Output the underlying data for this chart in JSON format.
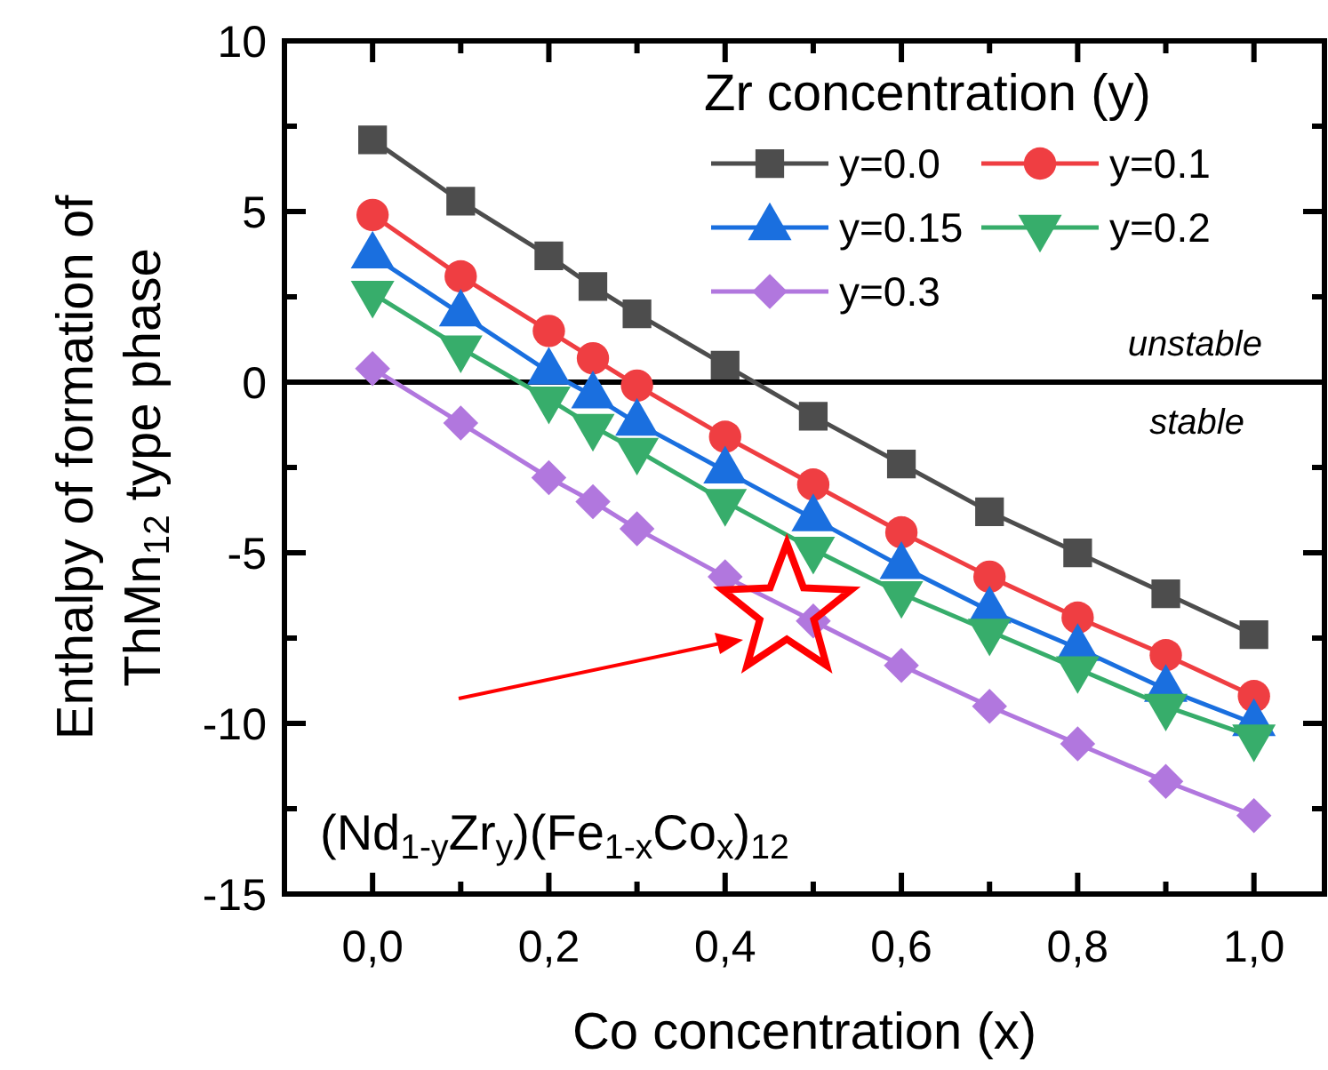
{
  "chart_data": {
    "type": "line",
    "xlabel": "Co concentration (x)",
    "ylabel": "Enthalpy of formation of\nThMn$_{12}$ type phase",
    "legend_title": "Zr concentration (y)",
    "legend": "top right",
    "grid": false,
    "line_style": "solid",
    "x": [
      0,
      0.1,
      0.2,
      0.25,
      0.3,
      0.4,
      0.5,
      0.6,
      0.7,
      0.8,
      0.9,
      1.0
    ],
    "xlim": [
      -0.1,
      1.08
    ],
    "ylim": [
      -15,
      10
    ],
    "xticks": [
      {
        "value": 0,
        "label": "0,0"
      },
      {
        "value": 0.1,
        "label": null
      },
      {
        "value": 0.2,
        "label": "0,2"
      },
      {
        "value": 0.3,
        "label": null
      },
      {
        "value": 0.4,
        "label": "0,4"
      },
      {
        "value": 0.5,
        "label": null
      },
      {
        "value": 0.6,
        "label": "0,6"
      },
      {
        "value": 0.7,
        "label": null
      },
      {
        "value": 0.8,
        "label": "0,8"
      },
      {
        "value": 0.9,
        "label": null
      },
      {
        "value": 1.0,
        "label": "1,0"
      }
    ],
    "yticks": [
      -15,
      {
        "value": -12.5,
        "label": null
      },
      -10,
      {
        "value": -7.5,
        "label": null
      },
      -5,
      {
        "value": -2.5,
        "label": null
      },
      0,
      {
        "value": 2.5,
        "label": null
      },
      5,
      {
        "value": 7.5,
        "label": null
      },
      10
    ],
    "series": [
      {
        "name": "y=0.0",
        "color": "#4d4d4d",
        "marker": "square",
        "values": [
          7.1,
          5.3,
          3.7,
          2.8,
          2.0,
          0.5,
          -1.0,
          -2.4,
          -3.8,
          -5.0,
          -6.2,
          -7.4
        ]
      },
      {
        "name": "y=0.1",
        "color": "#ef3e42",
        "marker": "circle",
        "values": [
          4.9,
          3.1,
          1.5,
          0.7,
          -0.1,
          -1.6,
          -3.0,
          -4.4,
          -5.7,
          -6.9,
          -8.0,
          -9.2
        ]
      },
      {
        "name": "y=0.15",
        "color": "#1a6fdf",
        "marker": "triangle",
        "values": [
          3.7,
          2.0,
          0.3,
          -0.4,
          -1.2,
          -2.6,
          -4.0,
          -5.4,
          -6.7,
          -7.8,
          -9.0,
          -10.0
        ]
      },
      {
        "name": "y=0.2",
        "color": "#37ad6b",
        "marker": "triangle-down",
        "values": [
          2.6,
          1.0,
          -0.5,
          -1.3,
          -2.0,
          -3.5,
          -4.9,
          -6.2,
          -7.3,
          -8.4,
          -9.5,
          -10.4
        ]
      },
      {
        "name": "y=0.3",
        "color": "#b177de",
        "marker": "diamond",
        "values": [
          0.4,
          -1.2,
          -2.8,
          -3.5,
          -4.3,
          -5.7,
          -7.0,
          -8.3,
          -9.5,
          -10.6,
          -11.7,
          -12.7
        ]
      }
    ],
    "ref_lines": [
      {
        "axis": "y",
        "value": 0,
        "color": "#000000"
      }
    ],
    "annotations": [
      "unstable",
      "stable",
      "(Nd$_{1-y}$Zr$_{y}$)(Fe$_{1-x}$Co$_{x}$)$_{12}$"
    ]
  }
}
